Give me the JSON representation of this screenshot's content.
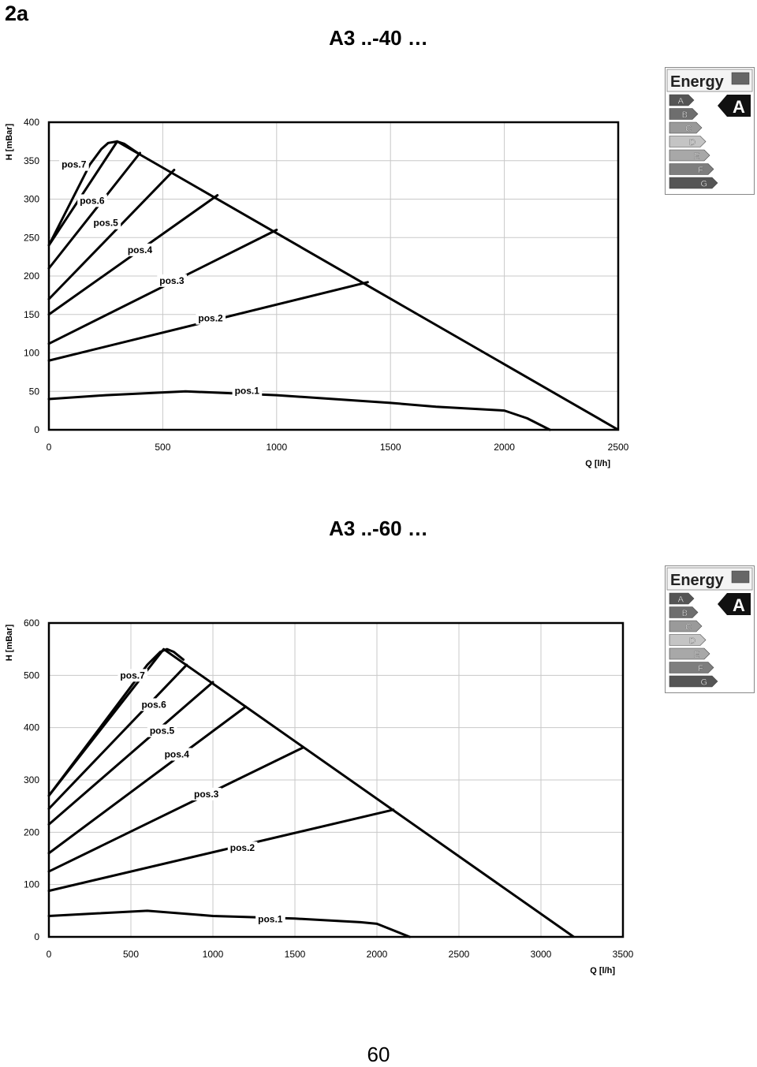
{
  "page": {
    "section_label": "2a",
    "page_number": "60"
  },
  "energy_label": {
    "title": "Energy",
    "rating": "A",
    "classes": [
      "A",
      "B",
      "C",
      "D",
      "E",
      "F",
      "G"
    ],
    "class_colors": [
      "#555555",
      "#6e6e6e",
      "#9a9a9a",
      "#c4c4c4",
      "#a8a8a8",
      "#7e7e7e",
      "#555555"
    ]
  },
  "chart_data": [
    {
      "type": "line",
      "title": "A3 ..-40 …",
      "xlabel": "Q [l/h]",
      "ylabel": "H [mBar]",
      "xlim": [
        0,
        2500
      ],
      "ylim": [
        0,
        400
      ],
      "xticks": [
        0,
        500,
        1000,
        1500,
        2000,
        2500
      ],
      "yticks": [
        0,
        50,
        100,
        150,
        200,
        250,
        300,
        350,
        400
      ],
      "grid": true,
      "envelope": {
        "x": [
          0,
          300,
          2500
        ],
        "y": [
          240,
          375,
          0
        ]
      },
      "series": [
        {
          "name": "pos.7",
          "x": [
            0,
            180,
            230,
            260,
            300,
            330,
            390
          ],
          "y": [
            240,
            345,
            365,
            373,
            375,
            372,
            360
          ]
        },
        {
          "name": "pos.6",
          "x": [
            0,
            400
          ],
          "y": [
            210,
            360
          ]
        },
        {
          "name": "pos.5",
          "x": [
            0,
            550
          ],
          "y": [
            170,
            338
          ]
        },
        {
          "name": "pos.4",
          "x": [
            0,
            740
          ],
          "y": [
            150,
            305
          ]
        },
        {
          "name": "pos.3",
          "x": [
            0,
            1000
          ],
          "y": [
            112,
            260
          ]
        },
        {
          "name": "pos.2",
          "x": [
            0,
            1400
          ],
          "y": [
            90,
            192
          ]
        },
        {
          "name": "pos.1",
          "x": [
            0,
            250,
            600,
            1000,
            1500,
            1700,
            2000,
            2100,
            2200
          ],
          "y": [
            40,
            45,
            50,
            45,
            35,
            30,
            25,
            15,
            0
          ]
        }
      ],
      "label_positions_data": [
        {
          "name": "pos.7",
          "x": 110,
          "y": 345
        },
        {
          "name": "pos.6",
          "x": 190,
          "y": 298
        },
        {
          "name": "pos.5",
          "x": 250,
          "y": 269
        },
        {
          "name": "pos.4",
          "x": 400,
          "y": 234
        },
        {
          "name": "pos.3",
          "x": 540,
          "y": 194
        },
        {
          "name": "pos.2",
          "x": 710,
          "y": 145
        },
        {
          "name": "pos.1",
          "x": 870,
          "y": 51
        }
      ]
    },
    {
      "type": "line",
      "title": "A3 ..-60 …",
      "xlabel": "Q [l/h]",
      "ylabel": "H [mBar]",
      "xlim": [
        0,
        3500
      ],
      "ylim": [
        0,
        600
      ],
      "xticks": [
        0,
        500,
        1000,
        1500,
        2000,
        2500,
        3000,
        3500
      ],
      "yticks": [
        0,
        100,
        200,
        300,
        400,
        500,
        600
      ],
      "grid": true,
      "envelope": {
        "x": [
          0,
          700,
          3200
        ],
        "y": [
          270,
          550,
          0
        ]
      },
      "series": [
        {
          "name": "pos.7",
          "x": [
            0,
            600,
            680,
            720,
            760,
            820
          ],
          "y": [
            270,
            520,
            545,
            550,
            545,
            530
          ]
        },
        {
          "name": "pos.6",
          "x": [
            0,
            840
          ],
          "y": [
            245,
            520
          ]
        },
        {
          "name": "pos.5",
          "x": [
            0,
            1000
          ],
          "y": [
            215,
            487
          ]
        },
        {
          "name": "pos.4",
          "x": [
            0,
            1200
          ],
          "y": [
            160,
            440
          ]
        },
        {
          "name": "pos.3",
          "x": [
            0,
            1550
          ],
          "y": [
            125,
            362
          ]
        },
        {
          "name": "pos.2",
          "x": [
            0,
            2100
          ],
          "y": [
            88,
            243
          ]
        },
        {
          "name": "pos.1",
          "x": [
            0,
            300,
            600,
            1000,
            1200,
            1500,
            1900,
            2000,
            2200
          ],
          "y": [
            40,
            45,
            50,
            40,
            38,
            35,
            28,
            25,
            0
          ]
        }
      ],
      "label_positions_data": [
        {
          "name": "pos.7",
          "x": 510,
          "y": 500
        },
        {
          "name": "pos.6",
          "x": 640,
          "y": 444
        },
        {
          "name": "pos.5",
          "x": 690,
          "y": 394
        },
        {
          "name": "pos.4",
          "x": 780,
          "y": 349
        },
        {
          "name": "pos.3",
          "x": 960,
          "y": 273
        },
        {
          "name": "pos.2",
          "x": 1180,
          "y": 170
        },
        {
          "name": "pos.1",
          "x": 1350,
          "y": 34
        }
      ]
    }
  ]
}
